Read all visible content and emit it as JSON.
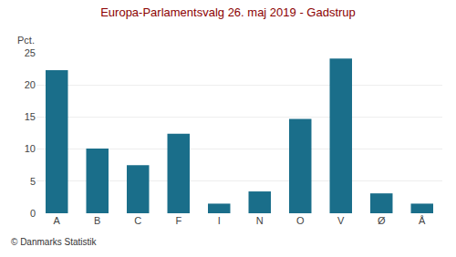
{
  "chart_data": {
    "type": "bar",
    "title": "Europa-Parlamentsvalg 26. maj 2019 - Gadstrup",
    "categories": [
      "A",
      "B",
      "C",
      "F",
      "I",
      "N",
      "O",
      "V",
      "Ø",
      "Å"
    ],
    "values": [
      22.3,
      10.1,
      7.5,
      12.4,
      1.5,
      3.4,
      14.7,
      24.1,
      3.1,
      1.5
    ],
    "color": "#1a6e8a",
    "ylabel": "Pct.",
    "footer": "© Danmarks Statistik",
    "ylim": [
      0,
      25
    ],
    "yticks": [
      0,
      5,
      10,
      15,
      20,
      25
    ],
    "grid": true
  }
}
